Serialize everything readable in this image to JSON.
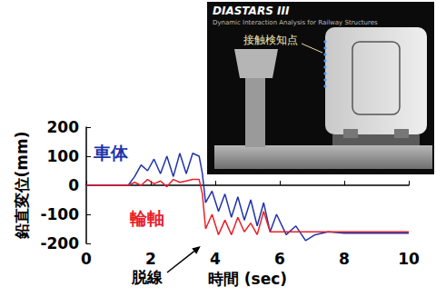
{
  "chart_data": {
    "type": "line",
    "x_label": "時間 (sec)",
    "y_label": "鉛直変位(mm)",
    "x": [
      0,
      1.3,
      1.5,
      1.7,
      1.9,
      2.1,
      2.3,
      2.5,
      2.7,
      2.9,
      3.1,
      3.3,
      3.5,
      3.6,
      3.7,
      3.9,
      4.1,
      4.3,
      4.5,
      4.7,
      4.9,
      5.1,
      5.3,
      5.5,
      5.7,
      5.9,
      6.2,
      6.5,
      6.8,
      7.1,
      7.5,
      8,
      9,
      10
    ],
    "series": [
      {
        "name": "車体",
        "color": "#2233aa",
        "values": [
          0,
          0,
          30,
          70,
          50,
          90,
          40,
          100,
          30,
          110,
          40,
          110,
          100,
          40,
          -60,
          -20,
          -90,
          -30,
          -110,
          -40,
          -120,
          -50,
          -140,
          -60,
          -160,
          -100,
          -170,
          -140,
          -190,
          -170,
          -160,
          -165,
          -165,
          -165
        ]
      },
      {
        "name": "輪軸",
        "color": "#e8202a",
        "values": [
          0,
          0,
          10,
          0,
          20,
          5,
          15,
          -5,
          20,
          10,
          15,
          20,
          20,
          -30,
          -150,
          -100,
          -170,
          -120,
          -170,
          -110,
          -160,
          -130,
          -170,
          -90,
          -160,
          -160,
          -160,
          -160,
          -160,
          -160,
          -160,
          -160,
          -160,
          -160
        ]
      }
    ],
    "xlim": [
      0,
      10
    ],
    "xticks": [
      0,
      2,
      4,
      6,
      8,
      10
    ],
    "ylim": [
      -200,
      200
    ],
    "yticks": [
      -200,
      -100,
      0,
      100,
      200
    ],
    "grid": false,
    "annotations": [
      {
        "text": "脱線",
        "x": 3.6,
        "y": -200
      }
    ],
    "inset": {
      "title": "DIASTARS III",
      "subtitle": "Dynamic Interaction Analysis for Railway Structures",
      "label": "接触検知点"
    }
  }
}
